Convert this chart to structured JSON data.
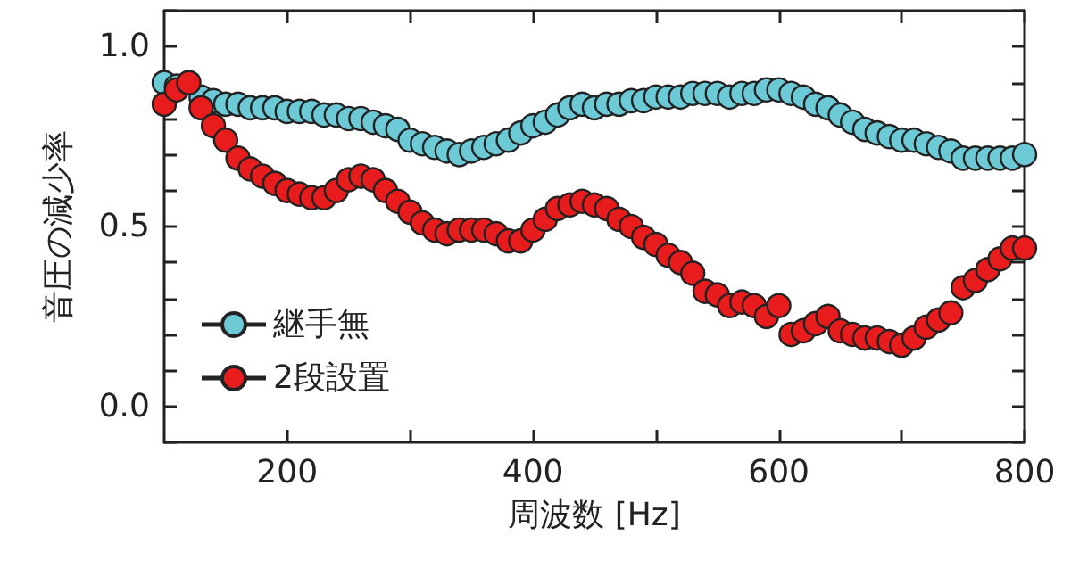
{
  "chart_data": {
    "type": "scatter",
    "xlabel": "周波数 [Hz]",
    "ylabel": "音圧の減少率",
    "x": [
      100,
      110,
      120,
      130,
      140,
      150,
      160,
      170,
      180,
      190,
      200,
      210,
      220,
      230,
      240,
      250,
      260,
      270,
      280,
      290,
      300,
      310,
      320,
      330,
      340,
      350,
      360,
      370,
      380,
      390,
      400,
      410,
      420,
      430,
      440,
      450,
      460,
      470,
      480,
      490,
      500,
      510,
      520,
      530,
      540,
      550,
      560,
      570,
      580,
      590,
      600,
      610,
      620,
      630,
      640,
      650,
      660,
      670,
      680,
      690,
      700,
      710,
      720,
      730,
      740,
      750,
      760,
      770,
      780,
      790,
      800
    ],
    "series": [
      {
        "name": "継手無",
        "color": "#6ccad6",
        "values": [
          0.9,
          0.89,
          null,
          0.86,
          0.85,
          0.84,
          0.84,
          0.83,
          0.83,
          0.83,
          0.82,
          0.82,
          0.82,
          0.81,
          0.81,
          0.8,
          0.8,
          0.79,
          0.78,
          0.77,
          0.74,
          0.73,
          0.72,
          0.71,
          0.7,
          0.71,
          0.72,
          0.73,
          0.74,
          0.76,
          0.78,
          0.79,
          0.81,
          0.83,
          0.84,
          0.83,
          0.84,
          0.84,
          0.85,
          0.85,
          0.86,
          0.86,
          0.86,
          0.87,
          0.87,
          0.87,
          0.86,
          0.87,
          0.87,
          0.88,
          0.88,
          0.87,
          0.86,
          0.84,
          0.83,
          0.81,
          0.79,
          0.77,
          0.76,
          0.75,
          0.74,
          0.74,
          0.73,
          0.72,
          0.71,
          0.69,
          0.69,
          0.69,
          0.69,
          0.69,
          0.7
        ]
      },
      {
        "name": "2段設置",
        "color": "#e81c1c",
        "values": [
          0.84,
          0.88,
          0.9,
          0.83,
          0.78,
          0.74,
          0.69,
          0.66,
          0.64,
          0.62,
          0.6,
          0.59,
          0.58,
          0.58,
          0.6,
          0.63,
          0.64,
          0.63,
          0.6,
          0.57,
          0.54,
          0.51,
          0.49,
          0.48,
          0.49,
          0.49,
          0.49,
          0.48,
          0.46,
          0.46,
          0.49,
          0.52,
          0.55,
          0.56,
          0.57,
          0.56,
          0.55,
          0.52,
          0.5,
          0.47,
          0.45,
          0.42,
          0.4,
          0.37,
          0.32,
          0.31,
          0.28,
          0.29,
          0.28,
          0.25,
          0.28,
          0.2,
          0.21,
          0.23,
          0.25,
          0.21,
          0.2,
          0.19,
          0.19,
          0.18,
          0.17,
          0.19,
          0.22,
          0.24,
          0.26,
          0.33,
          0.35,
          0.38,
          0.41,
          0.44,
          0.44
        ]
      }
    ],
    "xlim": [
      100,
      800
    ],
    "xticks": [
      200,
      {
        "value": 300,
        "label": null
      },
      400,
      {
        "value": 500,
        "label": null
      },
      600,
      {
        "value": 700,
        "label": null
      },
      800
    ],
    "ylim": [
      -0.1,
      1.1
    ],
    "yticks": [
      {
        "value": -0.1,
        "label": null
      },
      {
        "value": 0,
        "label": "0.0"
      },
      {
        "value": 0.1,
        "label": null
      },
      {
        "value": 0.2,
        "label": null
      },
      {
        "value": 0.3,
        "label": null
      },
      {
        "value": 0.4,
        "label": null
      },
      {
        "value": 0.5,
        "label": "0.5"
      },
      {
        "value": 0.6,
        "label": null
      },
      {
        "value": 0.7,
        "label": null
      },
      {
        "value": 0.8,
        "label": null
      },
      {
        "value": 0.9,
        "label": null
      },
      {
        "value": 1.0,
        "label": "1.0"
      },
      {
        "value": 1.1,
        "label": null
      }
    ],
    "marker": "circle",
    "grid": false,
    "legend": "bottom left"
  }
}
